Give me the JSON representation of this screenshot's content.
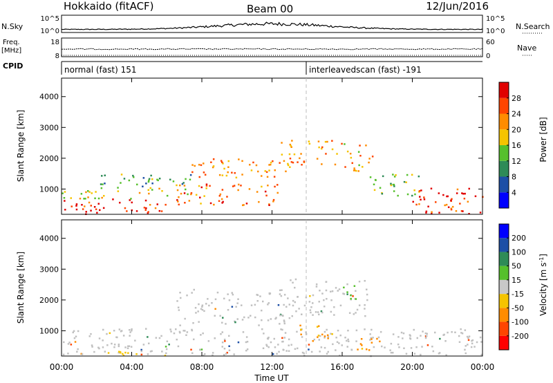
{
  "header": {
    "station": "Hokkaido (fitACF)",
    "beam": "Beam 00",
    "date": "12/Jun/2016"
  },
  "strips": {
    "nsky": {
      "label": "N.Sky",
      "ticks": [
        "10^5",
        "10^0"
      ],
      "right_label": "N.Search",
      "right_ticks": [
        "10^5",
        "10^0"
      ]
    },
    "freq": {
      "label_line1": "Freq.",
      "label_line2": "[MHz]",
      "ticks": [
        "18",
        "8"
      ],
      "right_label": "Nave",
      "right_ticks": [
        "60",
        "0"
      ]
    },
    "cpid": {
      "label": "CPID",
      "segments": [
        {
          "text": "normal (fast) 151",
          "start_hour": 0,
          "end_hour": 14.0
        },
        {
          "text": "interleavedscan (fast) -191",
          "start_hour": 14.0,
          "end_hour": 24
        }
      ]
    }
  },
  "xaxis": {
    "label": "Time UT",
    "ticks": [
      "00:00",
      "04:00",
      "08:00",
      "12:00",
      "16:00",
      "20:00",
      "00:00"
    ],
    "tick_hours": [
      0,
      4,
      8,
      12,
      16,
      20,
      24
    ]
  },
  "colors": {
    "power_scale": [
      "#0000ff",
      "#1d4fa6",
      "#2e8b57",
      "#56c02c",
      "#f5c400",
      "#ff8c00",
      "#ff4500",
      "#e00000"
    ],
    "velocity_scale": [
      "#ff0000",
      "#ff4500",
      "#ff8c00",
      "#f5c400",
      "#c8c8c8",
      "#56c02c",
      "#2e8b57",
      "#1d4fa6",
      "#0000ff"
    ],
    "ground_scatter": "#c0c0c0"
  },
  "chart_data": [
    {
      "type": "heatmap",
      "name": "power",
      "ylabel": "Slant Range [km]",
      "yticks": [
        "1000",
        "2000",
        "3000",
        "4000"
      ],
      "ytick_values": [
        1000,
        2000,
        3000,
        4000
      ],
      "ylim": [
        180,
        4600
      ],
      "xlim": [
        0,
        24
      ],
      "colorbar": {
        "label": "Power [dB]",
        "ticks": [
          "4",
          "8",
          "12",
          "16",
          "20",
          "24",
          "28"
        ],
        "tick_values": [
          4,
          8,
          12,
          16,
          20,
          24,
          28
        ],
        "range": [
          0,
          32
        ]
      },
      "regions": [
        {
          "kind": "band",
          "x": [
            0.0,
            6.0
          ],
          "y": [
            200,
            700
          ],
          "level": 28
        },
        {
          "kind": "band",
          "x": [
            0.0,
            7.5
          ],
          "y": [
            700,
            1100
          ],
          "level": 18
        },
        {
          "kind": "band",
          "x": [
            2.0,
            7.5
          ],
          "y": [
            1100,
            1500
          ],
          "level": 12
        },
        {
          "kind": "band",
          "x": [
            6.5,
            12.5
          ],
          "y": [
            500,
            1200
          ],
          "level": 24
        },
        {
          "kind": "band",
          "x": [
            7.0,
            13.0
          ],
          "y": [
            1400,
            2000
          ],
          "level": 22
        },
        {
          "kind": "band",
          "x": [
            12.5,
            16.0
          ],
          "y": [
            1800,
            2600
          ],
          "level": 22
        },
        {
          "kind": "band",
          "x": [
            16.0,
            17.8
          ],
          "y": [
            1600,
            2500
          ],
          "level": 20
        },
        {
          "kind": "band",
          "x": [
            17.5,
            20.5
          ],
          "y": [
            800,
            1500
          ],
          "level": 14
        },
        {
          "kind": "band",
          "x": [
            20.0,
            24.0
          ],
          "y": [
            200,
            1100
          ],
          "level": 28
        }
      ]
    },
    {
      "type": "heatmap",
      "name": "velocity",
      "ylabel": "Slant Range [km]",
      "yticks": [
        "1000",
        "2000",
        "3000",
        "4000"
      ],
      "ytick_values": [
        1000,
        2000,
        3000,
        4000
      ],
      "ylim": [
        180,
        4600
      ],
      "xlim": [
        0,
        24
      ],
      "colorbar": {
        "label": "Velocity [m s",
        "label_sup": "-1",
        "label_end": "]",
        "ticks": [
          "-200",
          "-100",
          "-50",
          "-15",
          "15",
          "50",
          "100",
          "200"
        ],
        "tick_values": [
          -200,
          -100,
          -50,
          -15,
          15,
          50,
          100,
          200
        ]
      },
      "regions": [
        {
          "kind": "band",
          "x": [
            0.0,
            24.0
          ],
          "y": [
            200,
            1100
          ],
          "value": 0
        },
        {
          "kind": "band",
          "x": [
            6.5,
            13.0
          ],
          "y": [
            1200,
            2400
          ],
          "value": 0
        },
        {
          "kind": "band",
          "x": [
            13.0,
            17.5
          ],
          "y": [
            1500,
            2700
          ],
          "value": 0
        },
        {
          "kind": "band",
          "x": [
            16.0,
            17.0
          ],
          "y": [
            2000,
            2600
          ],
          "value": 40
        },
        {
          "kind": "band",
          "x": [
            13.5,
            15.5
          ],
          "y": [
            600,
            1200
          ],
          "value": -60
        },
        {
          "kind": "band",
          "x": [
            16.5,
            18.0
          ],
          "y": [
            400,
            900
          ],
          "value": -60
        },
        {
          "kind": "band",
          "x": [
            2.5,
            6.0
          ],
          "y": [
            200,
            400
          ],
          "value": -30
        }
      ]
    }
  ]
}
